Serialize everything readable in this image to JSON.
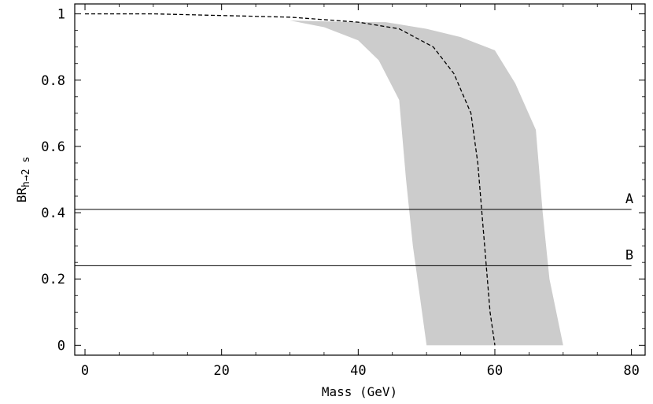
{
  "chart_data": {
    "type": "line",
    "xlabel": "Mass (GeV)",
    "ylabel": "BR",
    "ylabel_sub": "h→2 s",
    "xlim": [
      -1.5,
      82
    ],
    "ylim": [
      -0.03,
      1.03
    ],
    "x_ticks": [
      0,
      20,
      40,
      60,
      80
    ],
    "y_ticks": [
      0,
      0.2,
      0.4,
      0.6,
      0.8,
      1
    ],
    "x_tick_labels": [
      "0",
      "20",
      "40",
      "60",
      "80"
    ],
    "y_tick_labels": [
      "0",
      "0.2",
      "0.4",
      "0.6",
      "0.8",
      "1"
    ],
    "grid": false,
    "colors": {
      "band": "#cccccc",
      "line": "#000000"
    },
    "band": {
      "upper": [
        [
          27,
          0.985
        ],
        [
          30,
          0.98
        ],
        [
          34,
          0.978
        ],
        [
          40,
          0.975
        ],
        [
          44,
          0.975
        ],
        [
          50,
          0.955
        ],
        [
          55,
          0.93
        ],
        [
          60,
          0.89
        ],
        [
          63,
          0.79
        ],
        [
          66,
          0.65
        ],
        [
          67,
          0.4
        ],
        [
          68,
          0.2
        ],
        [
          70,
          0
        ]
      ],
      "lower": [
        [
          27,
          0.985
        ],
        [
          30,
          0.98
        ],
        [
          35,
          0.96
        ],
        [
          40,
          0.92
        ],
        [
          43,
          0.86
        ],
        [
          46,
          0.74
        ],
        [
          47,
          0.5
        ],
        [
          48,
          0.3
        ],
        [
          49,
          0.15
        ],
        [
          50,
          0
        ]
      ]
    },
    "series": [
      {
        "style": "dashed",
        "x": [
          0,
          10,
          20,
          30,
          40,
          46,
          51,
          54,
          56.5,
          57.5,
          58.5,
          59.3,
          60
        ],
        "y": [
          1.0,
          1.0,
          0.995,
          0.99,
          0.975,
          0.955,
          0.9,
          0.82,
          0.7,
          0.55,
          0.3,
          0.1,
          0
        ]
      }
    ],
    "hlines": [
      {
        "label": "A",
        "y": 0.41
      },
      {
        "label": "B",
        "y": 0.24
      }
    ]
  }
}
